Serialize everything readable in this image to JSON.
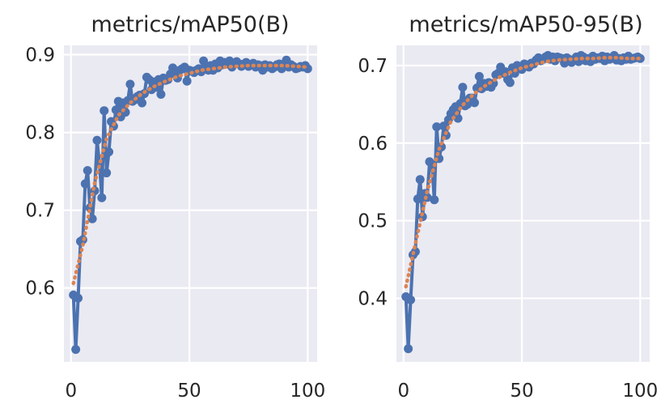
{
  "chart_data": [
    {
      "type": "line",
      "title": "metrics/mAP50(B)",
      "xlabel": "",
      "ylabel": "",
      "xlim": [
        -3,
        104
      ],
      "ylim": [
        0.505,
        0.912
      ],
      "xticks": [
        0,
        50,
        100
      ],
      "yticks": [
        0.6,
        0.7,
        0.8,
        0.9
      ],
      "x_tick_labels": [
        "0",
        "50",
        "100"
      ],
      "y_tick_labels": [
        "0.6",
        "0.7",
        "0.8",
        "0.9"
      ],
      "grid": true,
      "series": [
        {
          "style": "line-with-markers",
          "color": "#4c72b0",
          "x": [
            1,
            2,
            3,
            4,
            5,
            6,
            7,
            8,
            9,
            10,
            11,
            12,
            13,
            14,
            15,
            16,
            17,
            18,
            19,
            20,
            21,
            22,
            23,
            24,
            25,
            26,
            27,
            28,
            29,
            30,
            31,
            32,
            33,
            34,
            35,
            36,
            37,
            38,
            39,
            40,
            41,
            42,
            43,
            44,
            45,
            46,
            47,
            48,
            49,
            50,
            51,
            52,
            53,
            54,
            55,
            56,
            57,
            58,
            59,
            60,
            61,
            62,
            63,
            64,
            65,
            66,
            67,
            68,
            69,
            70,
            71,
            72,
            73,
            74,
            75,
            76,
            77,
            78,
            79,
            80,
            81,
            82,
            83,
            84,
            85,
            86,
            87,
            88,
            89,
            90,
            91,
            92,
            93,
            94,
            95,
            96,
            97,
            98,
            99,
            100
          ],
          "y": [
            0.591,
            0.521,
            0.587,
            0.66,
            0.662,
            0.734,
            0.751,
            0.703,
            0.689,
            0.725,
            0.79,
            0.76,
            0.716,
            0.828,
            0.748,
            0.775,
            0.814,
            0.808,
            0.829,
            0.84,
            0.82,
            0.838,
            0.826,
            0.841,
            0.862,
            0.84,
            0.842,
            0.846,
            0.848,
            0.838,
            0.85,
            0.871,
            0.868,
            0.855,
            0.865,
            0.858,
            0.868,
            0.849,
            0.87,
            0.867,
            0.868,
            0.875,
            0.883,
            0.878,
            0.87,
            0.88,
            0.882,
            0.884,
            0.866,
            0.88,
            0.879,
            0.877,
            0.88,
            0.882,
            0.878,
            0.892,
            0.882,
            0.88,
            0.886,
            0.88,
            0.888,
            0.883,
            0.892,
            0.887,
            0.89,
            0.888,
            0.892,
            0.884,
            0.889,
            0.891,
            0.888,
            0.885,
            0.888,
            0.89,
            0.885,
            0.887,
            0.889,
            0.884,
            0.887,
            0.886,
            0.88,
            0.887,
            0.884,
            0.886,
            0.882,
            0.884,
            0.887,
            0.888,
            0.882,
            0.886,
            0.893,
            0.884,
            0.887,
            0.885,
            0.882,
            0.883,
            0.885,
            0.884,
            0.886,
            0.882
          ]
        },
        {
          "style": "dotted",
          "color": "#dd8452",
          "x": [
            1,
            5,
            10,
            15,
            20,
            25,
            30,
            35,
            40,
            45,
            50,
            55,
            60,
            65,
            70,
            75,
            80,
            85,
            90,
            95,
            100
          ],
          "y": [
            0.606,
            0.655,
            0.735,
            0.792,
            0.822,
            0.838,
            0.85,
            0.859,
            0.866,
            0.872,
            0.876,
            0.88,
            0.882,
            0.884,
            0.885,
            0.886,
            0.886,
            0.886,
            0.886,
            0.885,
            0.884
          ]
        }
      ]
    },
    {
      "type": "line",
      "title": "metrics/mAP50-95(B)",
      "xlabel": "",
      "ylabel": "",
      "xlim": [
        -3,
        104
      ],
      "ylim": [
        0.318,
        0.726
      ],
      "xticks": [
        0,
        50,
        100
      ],
      "yticks": [
        0.4,
        0.5,
        0.6,
        0.7
      ],
      "x_tick_labels": [
        "0",
        "50",
        "100"
      ],
      "y_tick_labels": [
        "0.4",
        "0.5",
        "0.6",
        "0.7"
      ],
      "grid": true,
      "series": [
        {
          "style": "line-with-markers",
          "color": "#4c72b0",
          "x": [
            1,
            2,
            3,
            4,
            5,
            6,
            7,
            8,
            9,
            10,
            11,
            12,
            13,
            14,
            15,
            16,
            17,
            18,
            19,
            20,
            21,
            22,
            23,
            24,
            25,
            26,
            27,
            28,
            29,
            30,
            31,
            32,
            33,
            34,
            35,
            36,
            37,
            38,
            39,
            40,
            41,
            42,
            43,
            44,
            45,
            46,
            47,
            48,
            49,
            50,
            51,
            52,
            53,
            54,
            55,
            56,
            57,
            58,
            59,
            60,
            61,
            62,
            63,
            64,
            65,
            66,
            67,
            68,
            69,
            70,
            71,
            72,
            73,
            74,
            75,
            76,
            77,
            78,
            79,
            80,
            81,
            82,
            83,
            84,
            85,
            86,
            87,
            88,
            89,
            90,
            91,
            92,
            93,
            94,
            95,
            96,
            97,
            98,
            99,
            100
          ],
          "y": [
            0.402,
            0.335,
            0.398,
            0.456,
            0.46,
            0.528,
            0.553,
            0.505,
            0.535,
            0.53,
            0.576,
            0.572,
            0.527,
            0.621,
            0.58,
            0.595,
            0.622,
            0.61,
            0.63,
            0.638,
            0.643,
            0.647,
            0.632,
            0.651,
            0.672,
            0.648,
            0.65,
            0.658,
            0.658,
            0.652,
            0.671,
            0.686,
            0.67,
            0.677,
            0.673,
            0.678,
            0.672,
            0.677,
            0.688,
            0.69,
            0.698,
            0.69,
            0.692,
            0.682,
            0.678,
            0.697,
            0.69,
            0.7,
            0.698,
            0.695,
            0.702,
            0.701,
            0.698,
            0.703,
            0.702,
            0.707,
            0.71,
            0.706,
            0.708,
            0.711,
            0.713,
            0.708,
            0.711,
            0.706,
            0.711,
            0.71,
            0.709,
            0.703,
            0.71,
            0.708,
            0.704,
            0.707,
            0.711,
            0.705,
            0.713,
            0.711,
            0.706,
            0.709,
            0.705,
            0.712,
            0.708,
            0.71,
            0.709,
            0.712,
            0.706,
            0.711,
            0.708,
            0.709,
            0.713,
            0.707,
            0.709,
            0.706,
            0.71,
            0.708,
            0.712,
            0.708,
            0.709,
            0.71,
            0.711,
            0.709
          ]
        },
        {
          "style": "dotted",
          "color": "#dd8452",
          "x": [
            1,
            5,
            10,
            15,
            20,
            25,
            30,
            35,
            40,
            45,
            50,
            55,
            60,
            65,
            70,
            75,
            80,
            85,
            90,
            95,
            100
          ],
          "y": [
            0.415,
            0.47,
            0.538,
            0.592,
            0.628,
            0.649,
            0.664,
            0.675,
            0.684,
            0.691,
            0.697,
            0.701,
            0.705,
            0.707,
            0.708,
            0.709,
            0.709,
            0.71,
            0.71,
            0.709,
            0.709
          ]
        }
      ]
    }
  ]
}
